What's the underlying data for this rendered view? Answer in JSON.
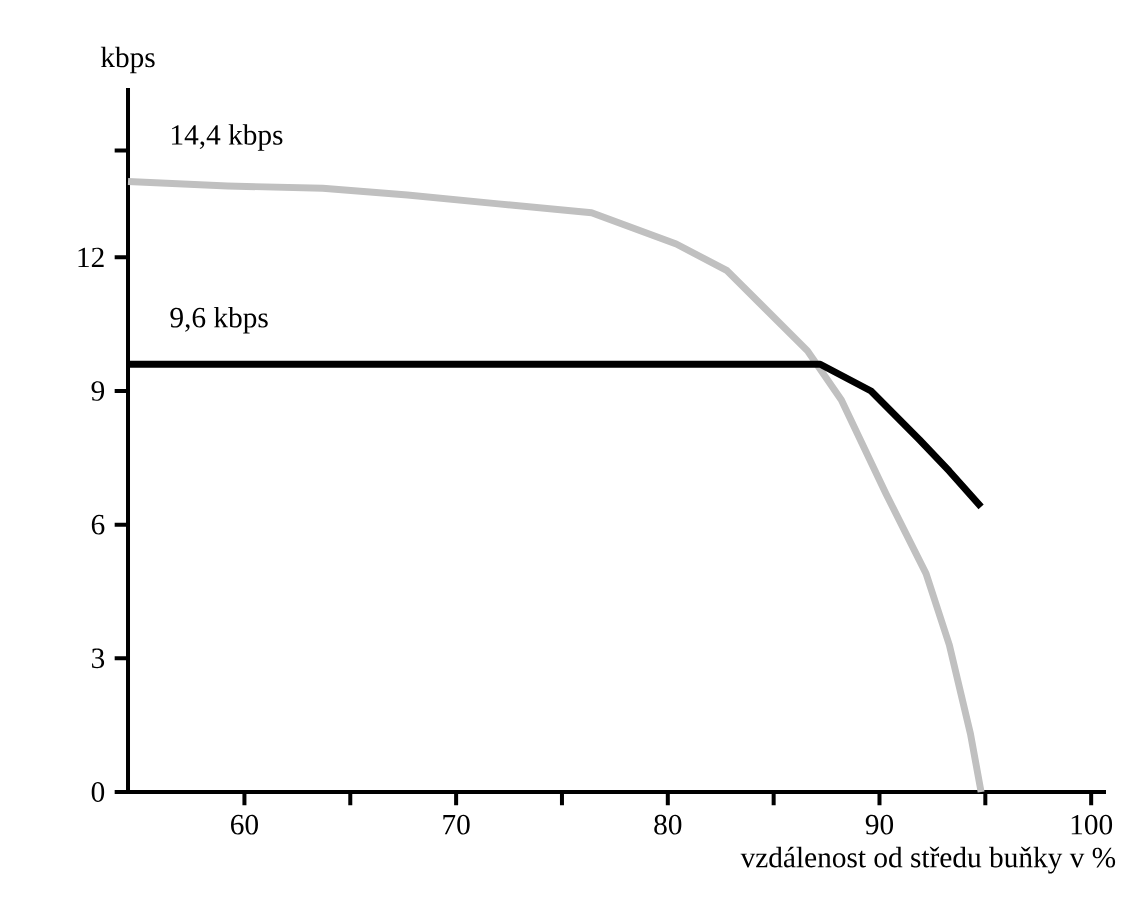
{
  "chart_data": {
    "type": "line",
    "xlabel": "vzdálenost od středu buňky v %",
    "ylabel": "kbps",
    "xlim": [
      54.5,
      100.7
    ],
    "ylim": [
      0,
      15.8
    ],
    "xticks": [
      60,
      {
        "value": 65,
        "label": null
      },
      70,
      {
        "value": 75,
        "label": null
      },
      80,
      {
        "value": 85,
        "label": null
      },
      90,
      {
        "value": 95,
        "label": null
      },
      100
    ],
    "yticks": [
      0,
      3,
      6,
      9,
      12,
      {
        "value": 14.4,
        "label": null
      }
    ],
    "grid": false,
    "marker": "none",
    "line_style": "solid",
    "series": [
      {
        "name": "14,4 kbps",
        "color": "#c0c0c0",
        "x": [
          54.5,
          59.2,
          63.7,
          67.7,
          72.0,
          76.4,
          80.4,
          82.8,
          86.6,
          88.2,
          90.3,
          92.2,
          93.3,
          94.3,
          94.8
        ],
        "values": [
          13.7,
          13.6,
          13.55,
          13.4,
          13.2,
          13.0,
          12.3,
          11.7,
          9.9,
          8.8,
          6.7,
          4.9,
          3.3,
          1.3,
          0
        ]
      },
      {
        "name": "9,6 kbps",
        "color": "#000000",
        "x": [
          54.5,
          87.2,
          89.6,
          91.9,
          93.3,
          94.8
        ],
        "values": [
          9.6,
          9.6,
          9.0,
          7.9,
          7.2,
          6.4
        ]
      }
    ]
  }
}
